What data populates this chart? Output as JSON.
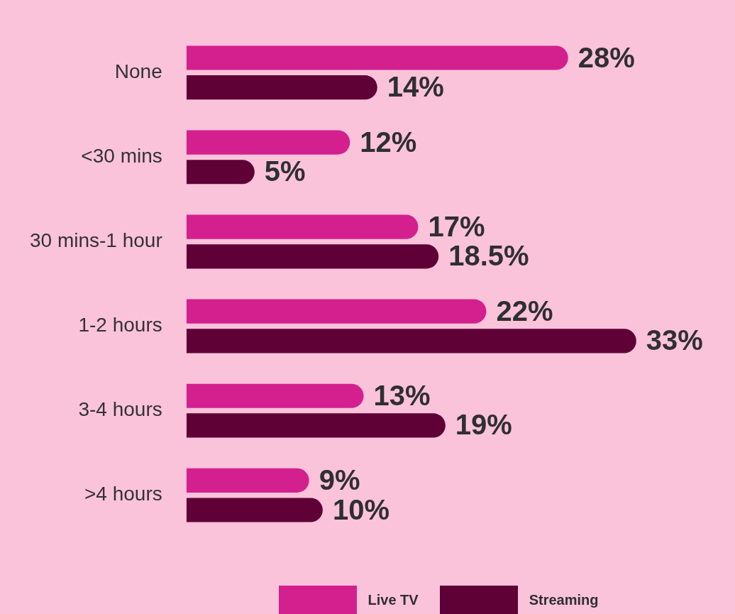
{
  "chart_data": {
    "type": "bar",
    "orientation": "horizontal",
    "categories": [
      "None",
      "<30 mins",
      "30 mins-1 hour",
      "1-2 hours",
      "3-4 hours",
      ">4 hours"
    ],
    "series": [
      {
        "name": "Live TV",
        "color": "#d41f8f",
        "values": [
          28,
          12,
          17,
          22,
          13,
          9
        ],
        "value_labels": [
          "28%",
          "12%",
          "17%",
          "22%",
          "13%",
          "9%"
        ]
      },
      {
        "name": "Streaming",
        "color": "#5f0037",
        "values": [
          14,
          5,
          18.5,
          33,
          19,
          10
        ],
        "value_labels": [
          "14%",
          "5%",
          "18.5%",
          "33%",
          "19%",
          "10%"
        ]
      }
    ],
    "legend": "bottom"
  }
}
